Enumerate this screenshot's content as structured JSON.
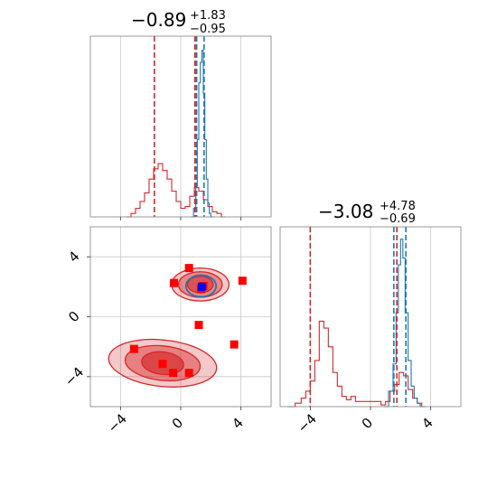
{
  "chart_data": {
    "type": "corner",
    "parameters": 2,
    "colors": {
      "red": "#d62728",
      "blue": "#1f77b4",
      "red_marker": "#ff0000",
      "blue_marker": "#0000ff"
    },
    "titles": [
      {
        "value": "−0.89",
        "plus": "+1.83",
        "minus": "−0.95"
      },
      {
        "value": "−3.08",
        "plus": "+4.78",
        "minus": "−0.69"
      }
    ],
    "axis_range": [
      -6,
      6
    ],
    "ticks": [
      {
        "value": -4,
        "label": "−4"
      },
      {
        "value": 0,
        "label": "0"
      },
      {
        "value": 4,
        "label": "4"
      }
    ],
    "grid": true,
    "marginals": [
      {
        "series": [
          {
            "name": "",
            "color": "red",
            "bins": [
              [
                -3.6,
                0.0
              ],
              [
                -3.3,
                0.02
              ],
              [
                -3.0,
                0.05
              ],
              [
                -2.7,
                0.09
              ],
              [
                -2.4,
                0.14
              ],
              [
                -2.1,
                0.22
              ],
              [
                -1.8,
                0.28
              ],
              [
                -1.5,
                0.31
              ],
              [
                -1.2,
                0.27
              ],
              [
                -0.9,
                0.22
              ],
              [
                -0.6,
                0.15
              ],
              [
                -0.3,
                0.09
              ],
              [
                0.0,
                0.05
              ],
              [
                0.3,
                0.06
              ],
              [
                0.6,
                0.12
              ],
              [
                0.9,
                0.17
              ],
              [
                1.2,
                0.15
              ],
              [
                1.5,
                0.1
              ],
              [
                1.8,
                0.06
              ],
              [
                2.1,
                0.03
              ],
              [
                2.4,
                0.02
              ],
              [
                2.7,
                0.0
              ]
            ]
          },
          {
            "name": "",
            "color": "blue",
            "bins": [
              [
                0.7,
                0.0
              ],
              [
                0.85,
                0.05
              ],
              [
                1.0,
                0.18
              ],
              [
                1.1,
                0.45
              ],
              [
                1.2,
                0.78
              ],
              [
                1.3,
                0.9
              ],
              [
                1.4,
                0.97
              ],
              [
                1.5,
                0.72
              ],
              [
                1.6,
                0.45
              ],
              [
                1.7,
                0.22
              ],
              [
                1.8,
                0.08
              ],
              [
                1.9,
                0.02
              ],
              [
                2.0,
                0.0
              ]
            ]
          }
        ],
        "vlines": [
          {
            "color": "red",
            "x": -1.75
          },
          {
            "color": "red",
            "x": 0.94
          },
          {
            "color": "red",
            "x": 1.05
          },
          {
            "color": "blue",
            "x": 1.05
          },
          {
            "color": "blue",
            "x": 1.55
          }
        ]
      },
      {
        "series": [
          {
            "name": "",
            "color": "red",
            "bins": [
              [
                -5.5,
                0.0
              ],
              [
                -5.0,
                0.02
              ],
              [
                -4.6,
                0.05
              ],
              [
                -4.3,
                0.09
              ],
              [
                -4.0,
                0.15
              ],
              [
                -3.7,
                0.27
              ],
              [
                -3.4,
                0.5
              ],
              [
                -3.1,
                0.46
              ],
              [
                -2.8,
                0.35
              ],
              [
                -2.5,
                0.2
              ],
              [
                -2.2,
                0.12
              ],
              [
                -1.9,
                0.06
              ],
              [
                -1.6,
                0.04
              ],
              [
                -1.3,
                0.06
              ],
              [
                -1.0,
                0.03
              ],
              [
                0.7,
                0.01
              ],
              [
                1.0,
                0.03
              ],
              [
                1.3,
                0.09
              ],
              [
                1.6,
                0.13
              ],
              [
                1.9,
                0.2
              ],
              [
                2.2,
                0.18
              ],
              [
                2.5,
                0.1
              ],
              [
                2.8,
                0.05
              ],
              [
                3.1,
                0.02
              ],
              [
                3.4,
                0.0
              ]
            ]
          },
          {
            "name": "",
            "color": "blue",
            "bins": [
              [
                0.9,
                0.0
              ],
              [
                1.2,
                0.09
              ],
              [
                1.5,
                0.25
              ],
              [
                1.7,
                0.55
              ],
              [
                1.85,
                0.83
              ],
              [
                2.0,
                0.98
              ],
              [
                2.15,
                0.87
              ],
              [
                2.3,
                0.55
              ],
              [
                2.5,
                0.27
              ],
              [
                2.7,
                0.12
              ],
              [
                2.9,
                0.05
              ],
              [
                3.1,
                0.02
              ],
              [
                3.3,
                0.0
              ]
            ]
          }
        ],
        "vlines": [
          {
            "color": "red",
            "x": -4.0
          },
          {
            "color": "red",
            "x": 1.75
          },
          {
            "color": "blue",
            "x": 1.55
          },
          {
            "color": "blue",
            "x": 2.35
          }
        ]
      }
    ],
    "joint": {
      "red_points": [
        [
          0.55,
          3.25
        ],
        [
          -0.45,
          2.25
        ],
        [
          4.1,
          2.4
        ],
        [
          1.2,
          -0.55
        ],
        [
          -3.1,
          -2.15
        ],
        [
          -1.2,
          -3.15
        ],
        [
          -0.5,
          -3.75
        ],
        [
          0.55,
          -3.75
        ],
        [
          3.55,
          -1.85
        ],
        [
          1.5,
          2.05
        ],
        [
          1.35,
          1.85
        ]
      ],
      "blue_points": [
        [
          1.4,
          2.0
        ]
      ],
      "contours": {
        "upper": {
          "cx": 1.3,
          "cy": 2.15,
          "levels": [
            {
              "rx": 1.9,
              "ry": 1.1,
              "opacity": 0.25
            },
            {
              "rx": 1.45,
              "ry": 0.85,
              "opacity": 0.4
            },
            {
              "rx": 0.85,
              "ry": 0.55,
              "opacity": 0.55
            }
          ]
        },
        "lower": {
          "cx": -1.2,
          "cy": -3.1,
          "levels": [
            {
              "rx": 3.6,
              "ry": 1.55,
              "opacity": 0.25
            },
            {
              "rx": 2.5,
              "ry": 1.15,
              "opacity": 0.45
            },
            {
              "rx": 1.4,
              "ry": 0.75,
              "opacity": 0.65
            }
          ]
        },
        "blue": {
          "cx": 1.35,
          "cy": 2.05,
          "rx": 1.0,
          "ry": 0.72
        }
      }
    }
  }
}
